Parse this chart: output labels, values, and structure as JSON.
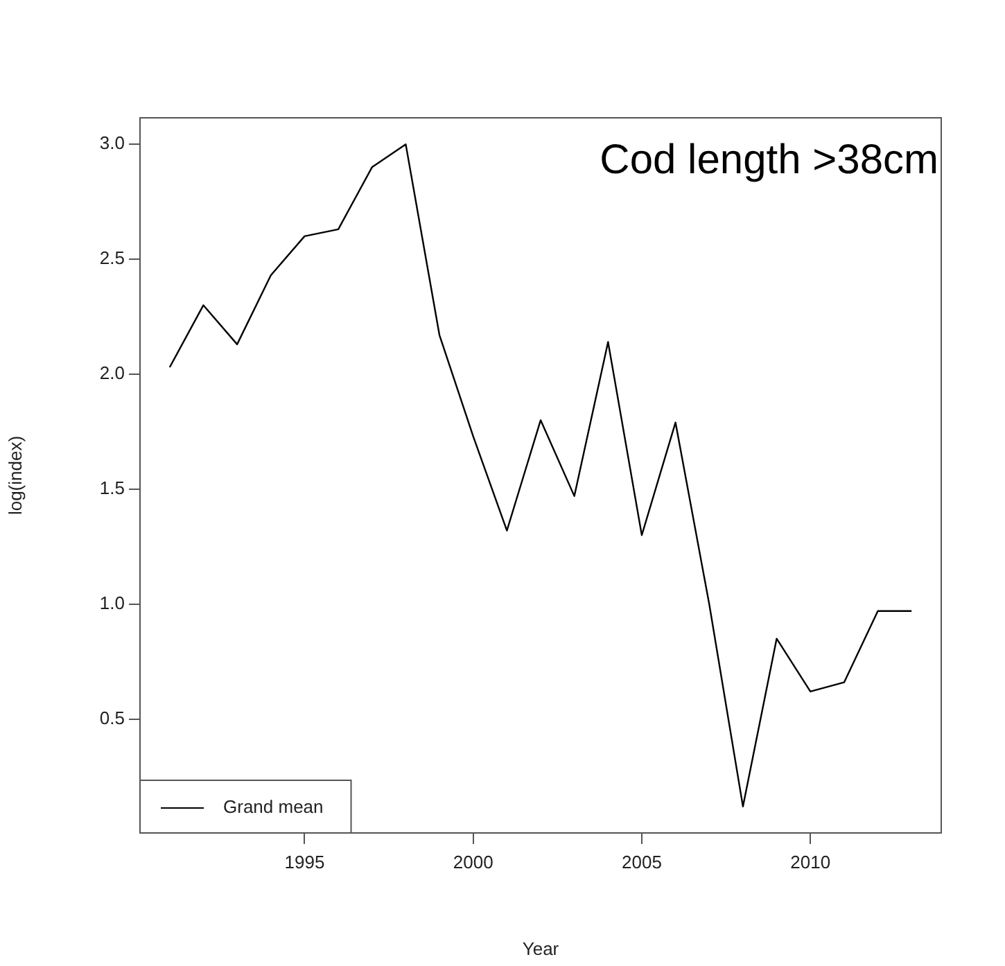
{
  "chart_data": {
    "type": "line",
    "title": "Cod length >38cm",
    "xlabel": "Year",
    "ylabel": "log(index)",
    "x": [
      1991,
      1992,
      1993,
      1994,
      1995,
      1996,
      1997,
      1998,
      1999,
      2000,
      2001,
      2002,
      2003,
      2004,
      2005,
      2006,
      2007,
      2008,
      2009,
      2010,
      2011,
      2012,
      2013
    ],
    "series": [
      {
        "name": "Grand mean",
        "color": "#000000",
        "values": [
          2.03,
          2.3,
          2.13,
          2.43,
          2.6,
          2.63,
          2.9,
          3.0,
          2.17,
          1.73,
          1.32,
          1.8,
          1.47,
          2.14,
          1.3,
          1.79,
          1.0,
          0.12,
          0.85,
          0.62,
          0.66,
          0.97,
          0.97
        ]
      }
    ],
    "xlim": [
      1990.12,
      2013.88
    ],
    "ylim": [
      0.005,
      3.115
    ],
    "xticks": [
      1995,
      2000,
      2005,
      2010
    ],
    "yticks": [
      {
        "value": 0.5,
        "label": "0.5"
      },
      {
        "value": 1,
        "label": "1.0"
      },
      {
        "value": 1.5,
        "label": "1.5"
      },
      {
        "value": 2,
        "label": "2.0"
      },
      {
        "value": 2.5,
        "label": "2.5"
      },
      {
        "value": 3,
        "label": "3.0"
      }
    ],
    "grid": false,
    "legend": "bottom left",
    "marker": "none",
    "line_style": "solid"
  }
}
